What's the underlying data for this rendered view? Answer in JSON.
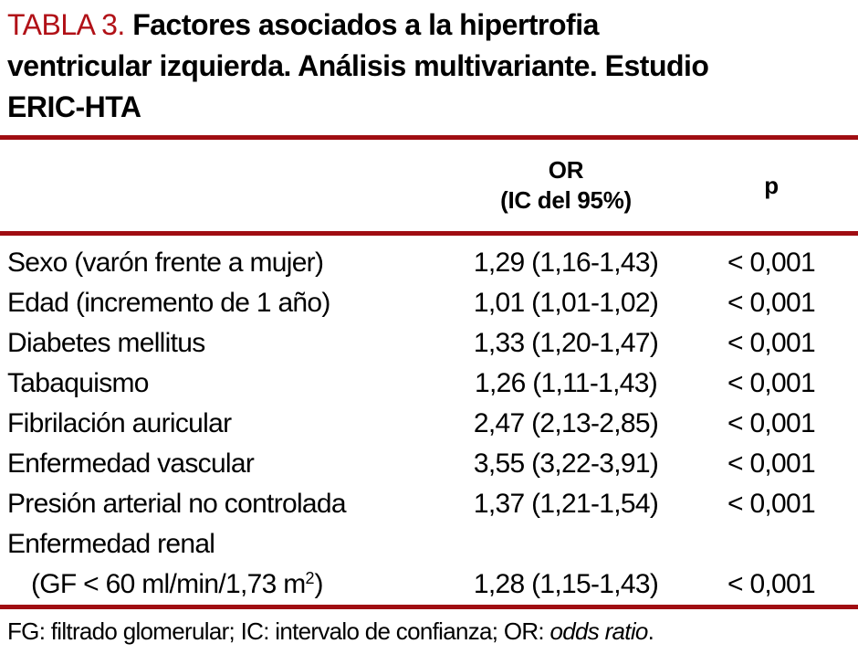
{
  "colors": {
    "accent_red": "#b11117",
    "rule_red": "#a00d12",
    "text": "#000000",
    "background": "#ffffff"
  },
  "title": {
    "label": "TABLA 3.",
    "line1": "Factores asociados a la hipertrofia",
    "line2": "ventricular izquierda. Análisis multivariante. Estudio",
    "line3": "ERIC-HTA"
  },
  "table": {
    "header": {
      "or_line1": "OR",
      "or_line2": "(IC del 95%)",
      "p": "p"
    },
    "rows": [
      {
        "factor": "Sexo (varón frente a mujer)",
        "or": "1,29 (1,16-1,43)",
        "p": "< 0,001"
      },
      {
        "factor": "Edad (incremento de 1 año)",
        "or": "1,01 (1,01-1,02)",
        "p": "< 0,001"
      },
      {
        "factor": "Diabetes mellitus",
        "or": "1,33 (1,20-1,47)",
        "p": "< 0,001"
      },
      {
        "factor": "Tabaquismo",
        "or": "1,26 (1,11-1,43)",
        "p": "< 0,001"
      },
      {
        "factor": "Fibrilación auricular",
        "or": "2,47 (2,13-2,85)",
        "p": "< 0,001"
      },
      {
        "factor": "Enfermedad vascular",
        "or": "3,55 (3,22-3,91)",
        "p": "< 0,001"
      },
      {
        "factor": "Presión arterial no controlada",
        "or": "1,37 (1,21-1,54)",
        "p": "< 0,001"
      },
      {
        "factor": "Enfermedad renal",
        "or": "",
        "p": ""
      },
      {
        "factor_pre": "(GF < 60 ml/min/1,73 m",
        "factor_sup": "2",
        "factor_post": ")",
        "or": "1,28 (1,15-1,43)",
        "p": "< 0,001"
      }
    ]
  },
  "footnote": {
    "text_pre": "FG: filtrado glomerular; IC: intervalo de confianza; OR: ",
    "italic": "odds ratio",
    "text_post": "."
  }
}
